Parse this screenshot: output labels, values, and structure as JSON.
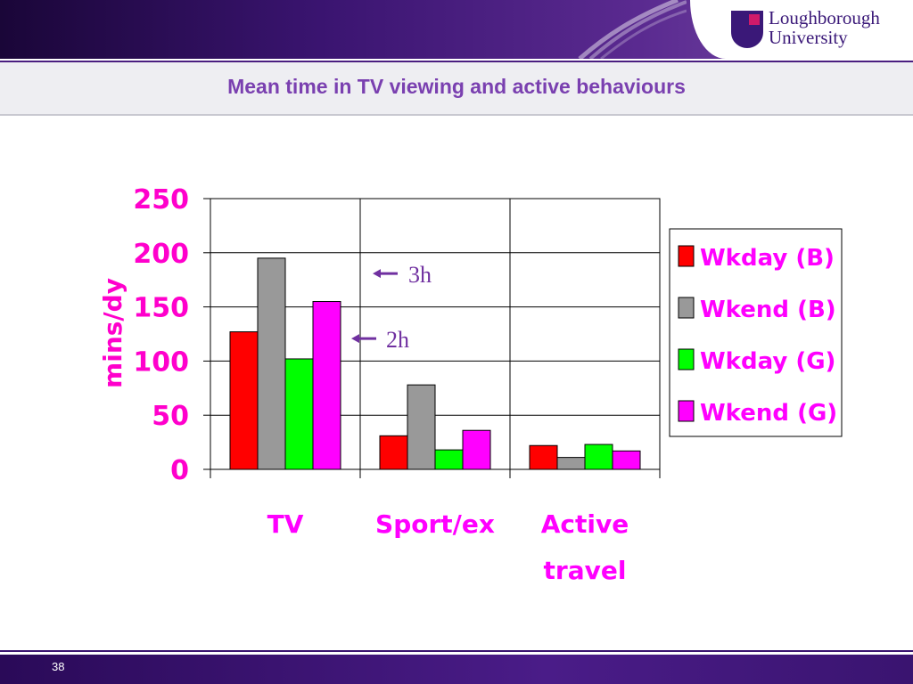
{
  "slide": {
    "title": "Mean time in TV viewing and active behaviours",
    "page_number": "38",
    "logo_line1": "Loughborough",
    "logo_line2": "University"
  },
  "colors": {
    "title": "#7a40b0",
    "axis_text": "#ff00cc",
    "label_text": "#ff00ff",
    "annotation": "#7030a0"
  },
  "chart_data": {
    "type": "bar",
    "categories": [
      "TV",
      "Sport/ex",
      "Active travel"
    ],
    "series": [
      {
        "name": "Wkday (B)",
        "color": "#ff0000",
        "values": [
          127,
          31,
          22
        ]
      },
      {
        "name": "Wkend (B)",
        "color": "#999999",
        "values": [
          195,
          78,
          11
        ]
      },
      {
        "name": "Wkday (G)",
        "color": "#00ff00",
        "values": [
          102,
          18,
          23
        ]
      },
      {
        "name": "Wkend (G)",
        "color": "#ff00ff",
        "values": [
          155,
          36,
          17
        ]
      }
    ],
    "ylabel": "mins/dy",
    "ylim": [
      0,
      250
    ],
    "yticks": [
      0,
      50,
      100,
      150,
      200,
      250
    ],
    "grid": true,
    "legend_position": "right",
    "annotations": [
      {
        "text": "3h",
        "y": 180
      },
      {
        "text": "2h",
        "y": 120
      }
    ]
  }
}
